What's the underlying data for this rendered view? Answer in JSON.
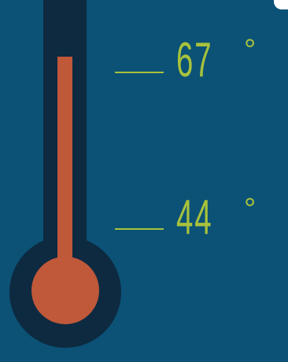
{
  "colors": {
    "background": "#0b5276",
    "tube": "#0d2a40",
    "mercury": "#c0583a",
    "accent": "#a9c23c"
  },
  "readings": {
    "high": "67",
    "low": "44",
    "degree_symbol": "°"
  },
  "icons": {
    "thermometer": "thermometer-icon"
  }
}
